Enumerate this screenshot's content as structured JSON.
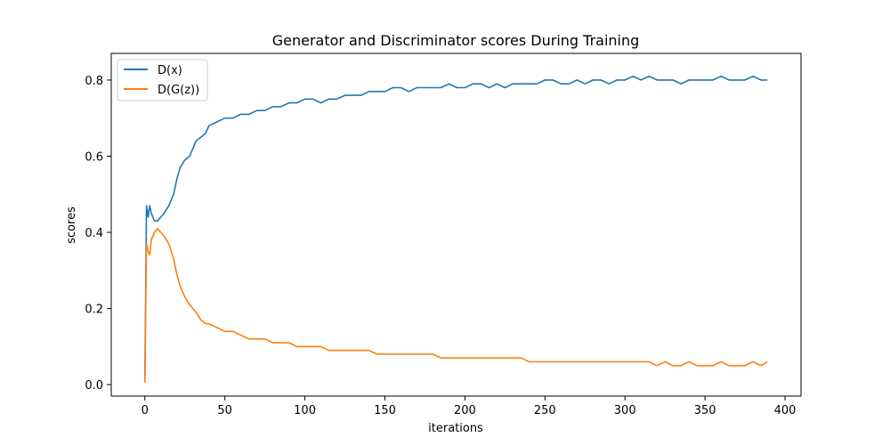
{
  "chart_data": {
    "type": "line",
    "title": "Generator and Discriminator scores During Training",
    "xlabel": "iterations",
    "ylabel": "scores",
    "xlim": [
      -21,
      410
    ],
    "ylim": [
      -0.03,
      0.87
    ],
    "xticks": [
      0,
      50,
      100,
      150,
      200,
      250,
      300,
      350,
      400
    ],
    "xtick_labels": [
      "0",
      "50",
      "100",
      "150",
      "200",
      "250",
      "300",
      "350",
      "400"
    ],
    "yticks": [
      0.0,
      0.2,
      0.4,
      0.6,
      0.8
    ],
    "ytick_labels": [
      "0.0",
      "0.2",
      "0.4",
      "0.6",
      "0.8"
    ],
    "grid": false,
    "legend": "top-left",
    "series": [
      {
        "name": "D(x)",
        "color": "#1f77b4",
        "x": [
          0,
          1,
          2,
          3,
          4,
          5,
          6,
          8,
          10,
          12,
          15,
          18,
          20,
          22,
          25,
          28,
          30,
          32,
          35,
          38,
          40,
          45,
          50,
          55,
          60,
          65,
          70,
          75,
          80,
          85,
          90,
          95,
          100,
          105,
          110,
          115,
          120,
          125,
          130,
          135,
          140,
          145,
          150,
          155,
          160,
          165,
          170,
          175,
          180,
          185,
          190,
          195,
          200,
          205,
          210,
          215,
          220,
          225,
          230,
          235,
          240,
          245,
          250,
          255,
          260,
          265,
          270,
          275,
          280,
          285,
          290,
          295,
          300,
          305,
          310,
          315,
          320,
          325,
          330,
          335,
          340,
          345,
          350,
          355,
          360,
          365,
          370,
          375,
          380,
          385,
          389
        ],
        "values": [
          0.02,
          0.47,
          0.44,
          0.47,
          0.45,
          0.44,
          0.43,
          0.43,
          0.44,
          0.45,
          0.47,
          0.5,
          0.54,
          0.57,
          0.59,
          0.6,
          0.62,
          0.64,
          0.65,
          0.66,
          0.68,
          0.69,
          0.7,
          0.7,
          0.71,
          0.71,
          0.72,
          0.72,
          0.73,
          0.73,
          0.74,
          0.74,
          0.75,
          0.75,
          0.74,
          0.75,
          0.75,
          0.76,
          0.76,
          0.76,
          0.77,
          0.77,
          0.77,
          0.78,
          0.78,
          0.77,
          0.78,
          0.78,
          0.78,
          0.78,
          0.79,
          0.78,
          0.78,
          0.79,
          0.79,
          0.78,
          0.79,
          0.78,
          0.79,
          0.79,
          0.79,
          0.79,
          0.8,
          0.8,
          0.79,
          0.79,
          0.8,
          0.79,
          0.8,
          0.8,
          0.79,
          0.8,
          0.8,
          0.81,
          0.8,
          0.81,
          0.8,
          0.8,
          0.8,
          0.79,
          0.8,
          0.8,
          0.8,
          0.8,
          0.81,
          0.8,
          0.8,
          0.8,
          0.81,
          0.8,
          0.8
        ]
      },
      {
        "name": "D(G(z))",
        "color": "#ff7f0e",
        "x": [
          0,
          1,
          2,
          3,
          4,
          5,
          6,
          8,
          10,
          12,
          15,
          18,
          20,
          22,
          25,
          28,
          30,
          32,
          35,
          38,
          40,
          45,
          50,
          55,
          60,
          65,
          70,
          75,
          80,
          85,
          90,
          95,
          100,
          105,
          110,
          115,
          120,
          125,
          130,
          135,
          140,
          145,
          150,
          155,
          160,
          165,
          170,
          175,
          180,
          185,
          190,
          195,
          200,
          205,
          210,
          215,
          220,
          225,
          230,
          235,
          240,
          245,
          250,
          255,
          260,
          265,
          270,
          275,
          280,
          285,
          290,
          295,
          300,
          305,
          310,
          315,
          320,
          325,
          330,
          335,
          340,
          345,
          350,
          355,
          360,
          365,
          370,
          375,
          380,
          385,
          389
        ],
        "values": [
          0.005,
          0.37,
          0.35,
          0.34,
          0.38,
          0.39,
          0.4,
          0.41,
          0.4,
          0.39,
          0.37,
          0.33,
          0.29,
          0.26,
          0.23,
          0.21,
          0.2,
          0.19,
          0.17,
          0.16,
          0.16,
          0.15,
          0.14,
          0.14,
          0.13,
          0.12,
          0.12,
          0.12,
          0.11,
          0.11,
          0.11,
          0.1,
          0.1,
          0.1,
          0.1,
          0.09,
          0.09,
          0.09,
          0.09,
          0.09,
          0.09,
          0.08,
          0.08,
          0.08,
          0.08,
          0.08,
          0.08,
          0.08,
          0.08,
          0.07,
          0.07,
          0.07,
          0.07,
          0.07,
          0.07,
          0.07,
          0.07,
          0.07,
          0.07,
          0.07,
          0.06,
          0.06,
          0.06,
          0.06,
          0.06,
          0.06,
          0.06,
          0.06,
          0.06,
          0.06,
          0.06,
          0.06,
          0.06,
          0.06,
          0.06,
          0.06,
          0.05,
          0.06,
          0.05,
          0.05,
          0.06,
          0.05,
          0.05,
          0.05,
          0.06,
          0.05,
          0.05,
          0.05,
          0.06,
          0.05,
          0.06
        ]
      }
    ]
  }
}
